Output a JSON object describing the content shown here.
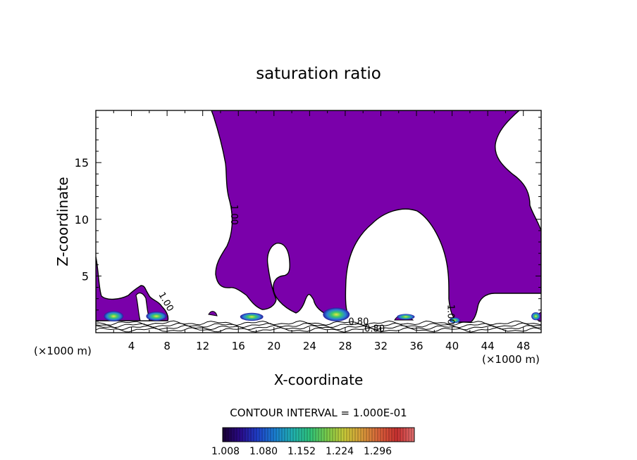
{
  "chart_data": {
    "type": "contour",
    "title": "saturation ratio",
    "xlabel": "X-coordinate",
    "ylabel": "Z-coordinate",
    "x_units": "(×1000 m)",
    "z_units": "(×1000 m)",
    "xlim": [
      0,
      50
    ],
    "ylim": [
      0,
      19.6
    ],
    "x_ticks": [
      4,
      8,
      12,
      16,
      20,
      24,
      28,
      32,
      36,
      40,
      44,
      48
    ],
    "y_ticks": [
      5,
      10,
      15
    ],
    "contour_interval_text": "CONTOUR INTERVAL = 1.000E-01",
    "colorbar": {
      "ticks": [
        "1.008",
        "1.080",
        "1.152",
        "1.224",
        "1.296"
      ],
      "colors": [
        "#1a0033",
        "#2a0a8a",
        "#1f3fc8",
        "#1a7fd0",
        "#20b0b0",
        "#2ec27a",
        "#7acb4a",
        "#c8c838",
        "#d89a3a",
        "#d8603a",
        "#c83030",
        "#e07070"
      ]
    },
    "fill_color": "#7a00aa",
    "contour_labels": [
      {
        "text": "1.00",
        "x": 15.2,
        "z": 10.4,
        "rotate": 90
      },
      {
        "text": "1.00",
        "x": 7.6,
        "z": 2.6,
        "rotate": 60
      },
      {
        "text": "1.00",
        "x": 39.5,
        "z": 1.6,
        "rotate": 90
      },
      {
        "text": "0.80",
        "x": 29.5,
        "z": 0.7,
        "rotate": 0
      },
      {
        "text": "0.80",
        "x": 31.3,
        "z": 0.1,
        "rotate": 0
      }
    ],
    "cloud_cores": [
      {
        "x": 2.0,
        "z": 1.45,
        "w": 2.2,
        "h": 0.9
      },
      {
        "x": 6.8,
        "z": 1.45,
        "w": 2.3,
        "h": 0.8
      },
      {
        "x": 17.5,
        "z": 1.4,
        "w": 2.6,
        "h": 0.7
      },
      {
        "x": 27.0,
        "z": 1.6,
        "w": 3.0,
        "h": 1.2
      },
      {
        "x": 34.8,
        "z": 1.4,
        "w": 2.0,
        "h": 0.5
      },
      {
        "x": 40.3,
        "z": 1.1,
        "w": 1.2,
        "h": 0.5
      },
      {
        "x": 49.4,
        "z": 1.45,
        "w": 1.0,
        "h": 0.7
      }
    ]
  }
}
